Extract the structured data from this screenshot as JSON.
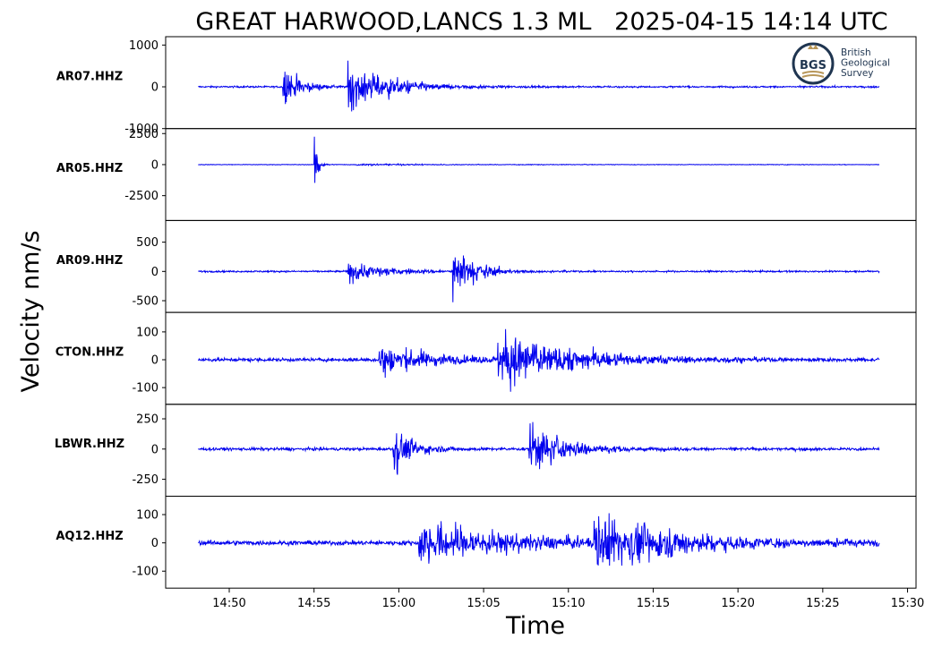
{
  "chart_data": {
    "type": "line",
    "title": "GREAT HARWOOD,LANCS 1.3 ML   2025-04-15 14:14 UTC",
    "xlabel": "Time",
    "ylabel": "Velocity nm/s",
    "x_ticks": [
      "14:50",
      "14:55",
      "15:00",
      "15:05",
      "15:10",
      "15:15",
      "15:20",
      "15:25",
      "15:30"
    ],
    "x_start": "14:48:10",
    "x_end": "15:28:20",
    "line_color": "#0000ee",
    "logo": {
      "badge": "BGS",
      "name_lines": [
        "British",
        "Geological",
        "Survey"
      ]
    },
    "series": [
      {
        "name": "AR07.HHZ",
        "ylim": [
          -1000,
          1200
        ],
        "y_ticks": [
          1000,
          0,
          -1000
        ],
        "y_tick_labels": [
          "1000",
          "0",
          "-1000"
        ],
        "noise": 25,
        "events": [
          {
            "t": "14:53:10",
            "amp": 950,
            "decay": 50
          },
          {
            "t": "14:57:00",
            "amp": 1050,
            "decay": 130
          }
        ]
      },
      {
        "name": "AR05.HHZ",
        "ylim": [
          -4500,
          2900
        ],
        "y_ticks": [
          2500,
          0,
          -2500
        ],
        "y_tick_labels": [
          "2500",
          "0",
          "-2500"
        ],
        "noise": 30,
        "events": [
          {
            "t": "14:55:00",
            "amp": 4300,
            "decay": 12
          },
          {
            "t": "14:57:30",
            "amp": 120,
            "decay": 220
          }
        ]
      },
      {
        "name": "AR09.HHZ",
        "ylim": [
          -700,
          870
        ],
        "y_ticks": [
          500,
          0,
          -500
        ],
        "y_tick_labels": [
          "500",
          "0",
          "-500"
        ],
        "noise": 18,
        "events": [
          {
            "t": "14:57:00",
            "amp": 300,
            "decay": 120
          },
          {
            "t": "15:03:10",
            "amp": 820,
            "decay": 70
          }
        ]
      },
      {
        "name": "CTON.HHZ",
        "ylim": [
          -160,
          170
        ],
        "y_ticks": [
          100,
          0,
          -100
        ],
        "y_tick_labels": [
          "100",
          "0",
          "-100"
        ],
        "noise": 8,
        "events": [
          {
            "t": "14:58:50",
            "amp": 100,
            "decay": 160
          },
          {
            "t": "15:05:50",
            "amp": 160,
            "decay": 250
          }
        ]
      },
      {
        "name": "LBWR.HHZ",
        "ylim": [
          -390,
          370
        ],
        "y_ticks": [
          250,
          0,
          -250
        ],
        "y_tick_labels": [
          "250",
          "0",
          "-250"
        ],
        "noise": 15,
        "events": [
          {
            "t": "14:59:40",
            "amp": 330,
            "decay": 60
          },
          {
            "t": "15:07:40",
            "amp": 360,
            "decay": 110
          }
        ]
      },
      {
        "name": "AQ12.HHZ",
        "ylim": [
          -160,
          165
        ],
        "y_ticks": [
          100,
          0,
          -100
        ],
        "y_tick_labels": [
          "100",
          "0",
          "-100"
        ],
        "noise": 10,
        "events": [
          {
            "t": "15:01:10",
            "amp": 130,
            "decay": 300
          },
          {
            "t": "15:11:30",
            "amp": 150,
            "decay": 280
          }
        ]
      }
    ]
  }
}
